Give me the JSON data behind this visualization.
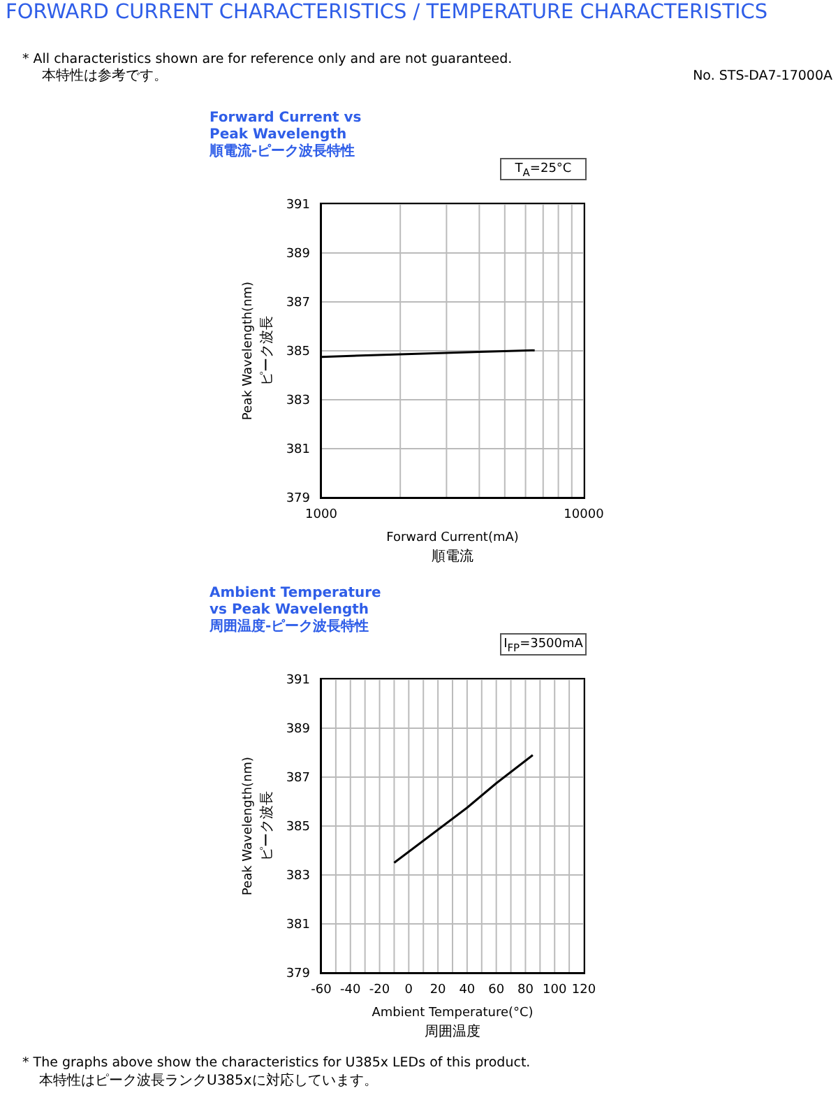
{
  "chart_data": [
    {
      "type": "line",
      "title": "Forward Current vs Peak Wavelength",
      "subtitle": "順電流-ピーク波長特性",
      "xlabel": "Forward Current(mA)\n順電流",
      "ylabel": "Peak Wavelength(nm)\nピーク波長",
      "log": "x",
      "grid": true,
      "x": [
        1000,
        2000,
        4000,
        6500
      ],
      "series": [
        {
          "color": "#000000",
          "values": [
            384.75,
            384.86,
            384.96,
            385.02
          ]
        }
      ],
      "xlim": [
        1000,
        10000
      ],
      "xticks": [
        1000,
        {
          "value": 2000,
          "label": null
        },
        {
          "value": 3000,
          "label": null
        },
        {
          "value": 4000,
          "label": null
        },
        {
          "value": 5000,
          "label": null
        },
        {
          "value": 6000,
          "label": null
        },
        {
          "value": 7000,
          "label": null
        },
        {
          "value": 8000,
          "label": null
        },
        {
          "value": 9000,
          "label": null
        },
        10000
      ],
      "ylim": [
        379,
        391
      ],
      "yticks": [
        379,
        381,
        383,
        385,
        387,
        389,
        391
      ],
      "annotations": [
        "FORWARD CURRENT CHARACTERISTICS / TEMPERATURE CHARACTERISTICS",
        "* All characteristics shown are for reference only and are not guaranteed.",
        "本特性は参考です。",
        "No. STS-DA7-17000A",
        "T$_{A}$=25°C"
      ]
    },
    {
      "type": "line",
      "title": "Ambient Temperature vs Peak Wavelength",
      "subtitle": "周囲温度-ピーク波長特性",
      "xlabel": "Ambient Temperature(°C)\n周囲温度",
      "ylabel": "Peak Wavelength(nm)\nピーク波長",
      "grid": true,
      "x": [
        -10,
        20,
        40,
        60,
        85
      ],
      "series": [
        {
          "color": "#000000",
          "values": [
            383.5,
            384.85,
            385.75,
            386.75,
            387.9
          ]
        }
      ],
      "xlim": [
        -60,
        120
      ],
      "xticks": [
        -60,
        {
          "value": -50,
          "label": null
        },
        -40,
        {
          "value": -30,
          "label": null
        },
        -20,
        {
          "value": -10,
          "label": null
        },
        0,
        {
          "value": 10,
          "label": null
        },
        20,
        {
          "value": 30,
          "label": null
        },
        40,
        {
          "value": 50,
          "label": null
        },
        60,
        {
          "value": 70,
          "label": null
        },
        80,
        {
          "value": 90,
          "label": null
        },
        100,
        {
          "value": 110,
          "label": null
        },
        120
      ],
      "ylim": [
        379,
        391
      ],
      "yticks": [
        379,
        381,
        383,
        385,
        387,
        389,
        391
      ],
      "annotations": [
        "I$_{FP}$=3500mA",
        "* The graphs above show the characteristics for U385x LEDs of this product.",
        "本特性はピーク波長ランクU385xに対応しています。"
      ]
    }
  ]
}
